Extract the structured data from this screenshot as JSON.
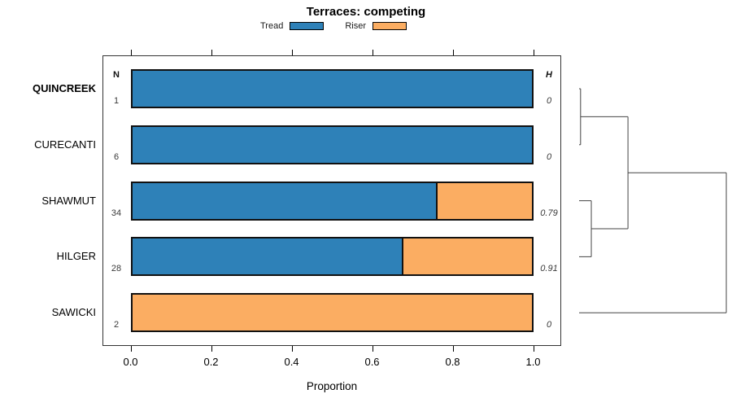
{
  "title": "Terraces: competing",
  "legend": {
    "items": [
      {
        "label": "Tread",
        "color": "#2E81B8"
      },
      {
        "label": "Riser",
        "color": "#FBAD62"
      }
    ]
  },
  "columns": {
    "n_header": "N",
    "h_header": "H"
  },
  "x_axis": {
    "label": "Proportion",
    "tick_labels": [
      "0.0",
      "0.2",
      "0.4",
      "0.6",
      "0.8",
      "1.0"
    ],
    "tick_values": [
      0,
      0.2,
      0.4,
      0.6,
      0.8,
      1.0
    ],
    "range": [
      0,
      1
    ]
  },
  "chart_data": {
    "type": "bar",
    "orientation": "horizontal",
    "stacked": true,
    "title": "Terraces: competing",
    "xlabel": "Proportion",
    "xlim": [
      0,
      1
    ],
    "grid": false,
    "legend_position": "top",
    "categories": [
      "QUINCREEK",
      "CURECANTI",
      "SHAWMUT",
      "HILGER",
      "SAWICKI"
    ],
    "series": [
      {
        "name": "Tread",
        "color": "#2E81B8",
        "values": [
          1.0,
          1.0,
          0.765,
          0.679,
          0.0
        ]
      },
      {
        "name": "Riser",
        "color": "#FBAD62",
        "values": [
          0.0,
          0.0,
          0.235,
          0.321,
          1.0
        ]
      }
    ],
    "rows": [
      {
        "label": "QUINCREEK",
        "bold": true,
        "n": "1",
        "h": "0",
        "tread": 1.0,
        "riser": 0.0
      },
      {
        "label": "CURECANTI",
        "bold": false,
        "n": "6",
        "h": "0",
        "tread": 1.0,
        "riser": 0.0
      },
      {
        "label": "SHAWMUT",
        "bold": false,
        "n": "34",
        "h": "0.79",
        "tread": 0.765,
        "riser": 0.235
      },
      {
        "label": "HILGER",
        "bold": false,
        "n": "28",
        "h": "0.91",
        "tread": 0.679,
        "riser": 0.321
      },
      {
        "label": "SAWICKI",
        "bold": false,
        "n": "2",
        "h": "0",
        "tread": 0.0,
        "riser": 1.0
      }
    ],
    "dendrogram": {
      "leaf_order": [
        "QUINCREEK",
        "CURECANTI",
        "SHAWMUT",
        "HILGER",
        "SAWICKI"
      ],
      "merges": [
        {
          "a": {
            "type": "leaf",
            "index": 0
          },
          "b": {
            "type": "leaf",
            "index": 1
          },
          "height": 0.01
        },
        {
          "a": {
            "type": "leaf",
            "index": 2
          },
          "b": {
            "type": "leaf",
            "index": 3
          },
          "height": 0.083
        },
        {
          "a": {
            "type": "merge",
            "index": 0
          },
          "b": {
            "type": "merge",
            "index": 1
          },
          "height": 0.332
        },
        {
          "a": {
            "type": "merge",
            "index": 2
          },
          "b": {
            "type": "leaf",
            "index": 4
          },
          "height": 1.0
        }
      ]
    }
  }
}
